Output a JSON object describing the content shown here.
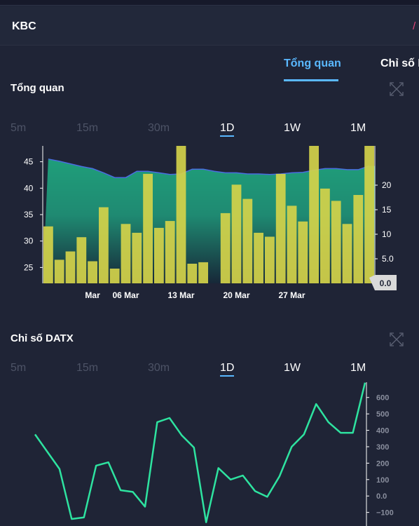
{
  "header": {
    "ticker": "KBC",
    "slash": "/"
  },
  "tabs": [
    {
      "label": "Tổng quan",
      "active": true
    },
    {
      "label": "Chỉ số D",
      "active": false
    }
  ],
  "overview": {
    "title": "Tổng quan",
    "timeframes": [
      "5m",
      "15m",
      "30m",
      "1D",
      "1W",
      "1M"
    ],
    "selected_timeframe": "1D",
    "current_volume_label": "0.0"
  },
  "datx": {
    "title": "Chỉ số DATX",
    "timeframes": [
      "5m",
      "15m",
      "30m",
      "1D",
      "1W",
      "1M"
    ],
    "selected_timeframe": "1D"
  },
  "colors": {
    "bar": "#d4d34a",
    "area_top": "#1f9e7a",
    "area_bottom": "#18343a",
    "price_line": "#4a6de0",
    "datx_line": "#2ee3a0",
    "accent": "#5ab8ff"
  },
  "chart_data": [
    {
      "type": "bar",
      "title": "Tổng quan",
      "x_ticks": [
        "Mar",
        "06 Mar",
        "13 Mar",
        "20 Mar",
        "27 Mar"
      ],
      "y_left_ticks": [
        "25",
        "30",
        "35",
        "40",
        "45"
      ],
      "y_left_lim": [
        22,
        48
      ],
      "y_right_ticks": [
        "5.0",
        "10",
        "15",
        "20"
      ],
      "y_right_lim": [
        0,
        28
      ],
      "series": [
        {
          "kind": "bar",
          "values": [
            11.6,
            4.8,
            6.5,
            9.4,
            4.5,
            15.5,
            3.0,
            12.1,
            10.3,
            22.3,
            11.3,
            12.7,
            28.0,
            4.0,
            4.3,
            0,
            14.3,
            20.1,
            17.2,
            10.3,
            9.5,
            22.3,
            15.8,
            12.6,
            28.0,
            19.3,
            16.8,
            12.1,
            18.0,
            28.0
          ]
        },
        {
          "kind": "area",
          "values": [
            45.5,
            45.1,
            44.6,
            44.1,
            43.7,
            42.9,
            42.0,
            42.0,
            43.2,
            43.2,
            42.9,
            42.6,
            42.7,
            43.6,
            43.6,
            43.2,
            42.9,
            42.9,
            42.7,
            42.7,
            42.6,
            42.7,
            42.9,
            43.0,
            43.4,
            43.7,
            43.7,
            43.5,
            43.5,
            44.2
          ]
        }
      ]
    },
    {
      "type": "line",
      "title": "Chỉ số DATX",
      "y_ticks": [
        "−100",
        "0.0",
        "100",
        "200",
        "300",
        "400",
        "500",
        "600"
      ],
      "y_lim": [
        -140,
        680
      ],
      "series": [
        {
          "values": [
            375,
            270,
            165,
            -140,
            -130,
            185,
            205,
            35,
            25,
            -65,
            450,
            475,
            370,
            295,
            -160,
            170,
            100,
            125,
            30,
            -5,
            120,
            300,
            375,
            560,
            450,
            385,
            385,
            690
          ]
        }
      ]
    }
  ]
}
